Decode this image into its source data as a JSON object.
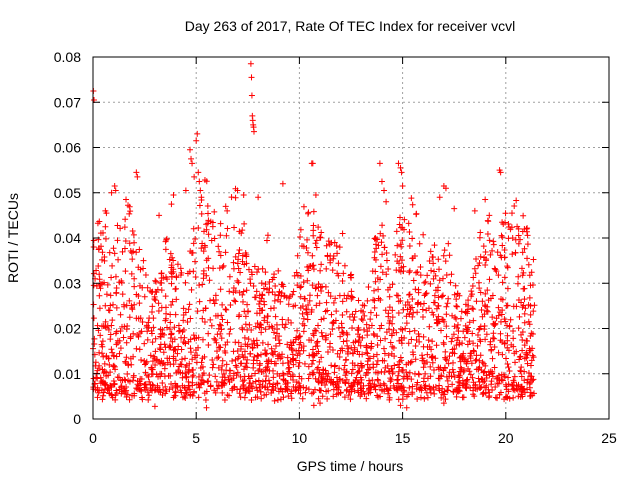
{
  "chart_data": {
    "type": "scatter",
    "title": "Day 263 of 2017, Rate Of TEC Index for receiver vcvl",
    "xlabel": "GPS time / hours",
    "ylabel": "ROTI / TECUs",
    "xlim": [
      0,
      25
    ],
    "ylim": [
      0,
      0.08
    ],
    "xticks": [
      0,
      5,
      10,
      15,
      20,
      25
    ],
    "yticks": [
      0,
      0.01,
      0.02,
      0.03,
      0.04,
      0.05,
      0.06,
      0.07,
      0.08
    ],
    "xtick_labels": [
      "0",
      "5",
      "10",
      "15",
      "20",
      "25"
    ],
    "ytick_labels": [
      "0",
      "0.01",
      "0.02",
      "0.03",
      "0.04",
      "0.05",
      "0.06",
      "0.07",
      "0.08"
    ],
    "grid": true,
    "marker": "+",
    "color": "#ff0000",
    "series": [
      {
        "points": [
          [
            0.02,
            0.0725
          ],
          [
            0.05,
            0.0705
          ],
          [
            0.1,
            0.031
          ],
          [
            0.3,
            0.032
          ],
          [
            0.6,
            0.046
          ],
          [
            0.65,
            0.0455
          ],
          [
            0.9,
            0.05
          ],
          [
            1.05,
            0.0515
          ],
          [
            1.1,
            0.0505
          ],
          [
            1.6,
            0.0485
          ],
          [
            2.1,
            0.0545
          ],
          [
            2.15,
            0.0535
          ],
          [
            3.2,
            0.045
          ],
          [
            3.8,
            0.0475
          ],
          [
            3.9,
            0.0495
          ],
          [
            4.5,
            0.0505
          ],
          [
            4.7,
            0.0595
          ],
          [
            4.75,
            0.0575
          ],
          [
            4.8,
            0.0565
          ],
          [
            4.9,
            0.0535
          ],
          [
            5.0,
            0.0615
          ],
          [
            5.05,
            0.063
          ],
          [
            5.1,
            0.0545
          ],
          [
            5.15,
            0.0525
          ],
          [
            5.2,
            0.0505
          ],
          [
            5.25,
            0.049
          ],
          [
            6.5,
            0.046
          ],
          [
            7.0,
            0.0505
          ],
          [
            7.3,
            0.0495
          ],
          [
            7.65,
            0.0785
          ],
          [
            7.68,
            0.0755
          ],
          [
            7.7,
            0.0715
          ],
          [
            7.72,
            0.067
          ],
          [
            7.74,
            0.066
          ],
          [
            7.76,
            0.065
          ],
          [
            7.78,
            0.0645
          ],
          [
            7.8,
            0.0635
          ],
          [
            8.0,
            0.049
          ],
          [
            9.2,
            0.052
          ],
          [
            10.6,
            0.0565
          ],
          [
            10.65,
            0.0565
          ],
          [
            10.8,
            0.0495
          ],
          [
            13.9,
            0.0565
          ],
          [
            14.0,
            0.0525
          ],
          [
            14.1,
            0.0505
          ],
          [
            14.2,
            0.048
          ],
          [
            14.8,
            0.0565
          ],
          [
            14.9,
            0.0555
          ],
          [
            14.95,
            0.0545
          ],
          [
            15.0,
            0.0515
          ],
          [
            16.8,
            0.049
          ],
          [
            17.0,
            0.0515
          ],
          [
            17.1,
            0.051
          ],
          [
            17.5,
            0.0465
          ],
          [
            18.5,
            0.046
          ],
          [
            19.0,
            0.0485
          ],
          [
            19.2,
            0.045
          ],
          [
            19.7,
            0.055
          ],
          [
            19.75,
            0.0545
          ],
          [
            20.3,
            0.0455
          ],
          [
            20.9,
            0.042
          ],
          [
            21.0,
            0.042
          ],
          [
            21.3,
            0.014
          ],
          [
            5.5,
            0.0025
          ],
          [
            10.7,
            0.003
          ],
          [
            11.0,
            0.0035
          ],
          [
            3.0,
            0.0028
          ],
          [
            14.9,
            0.003
          ],
          [
            17.0,
            0.0035
          ],
          [
            8.8,
            0.004
          ],
          [
            15.2,
            0.0025
          ]
        ]
      }
    ]
  }
}
